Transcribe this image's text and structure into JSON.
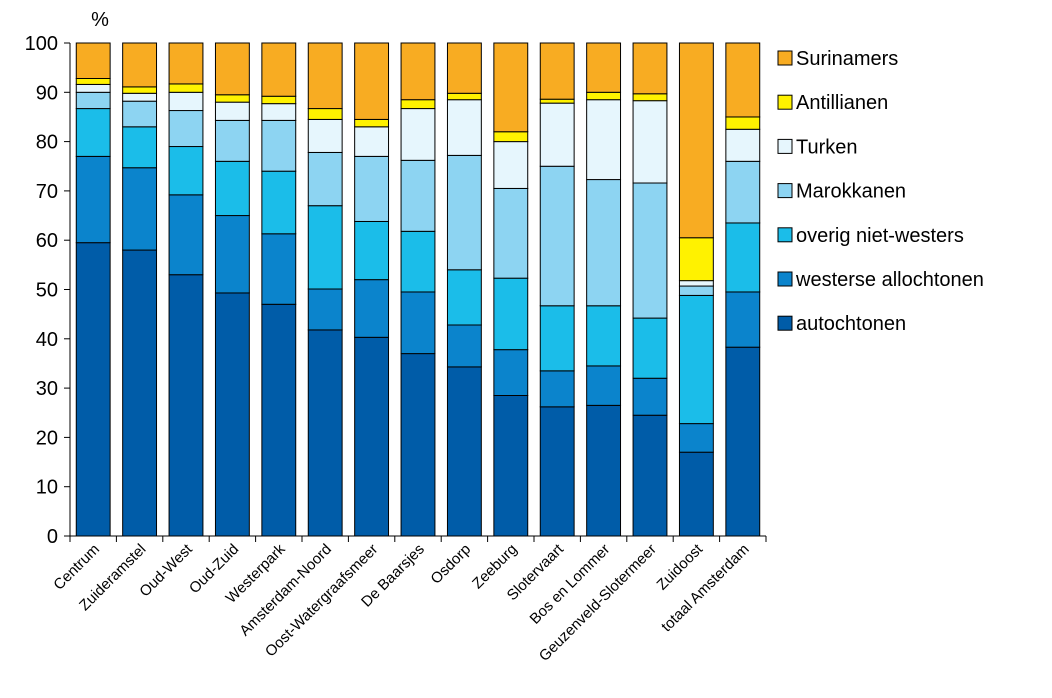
{
  "chart_data": {
    "type": "bar",
    "stacked": true,
    "ylabel": "%",
    "ylim": [
      0,
      100
    ],
    "yticks": [
      0,
      10,
      20,
      30,
      40,
      50,
      60,
      70,
      80,
      90,
      100
    ],
    "grid": false,
    "legend_position": "right",
    "categories": [
      "Centrum",
      "Zuideramstel",
      "Oud-West",
      "Oud-Zuid",
      "Westerpark",
      "Amsterdam-Noord",
      "Oost-Watergraafsmeer",
      "De Baarsjes",
      "Osdorp",
      "Zeeburg",
      "Slotervaart",
      "Bos en Lommer",
      "Geuzenveld-Slotermeer",
      "Zuidoost",
      "totaal Amsterdam"
    ],
    "series": [
      {
        "name": "autochtonen",
        "color": "#005ca8",
        "values": [
          59.5,
          58.0,
          53.0,
          49.3,
          47.0,
          41.8,
          40.3,
          37.0,
          34.3,
          28.5,
          26.2,
          26.5,
          24.5,
          17.0,
          38.3
        ]
      },
      {
        "name": "westerse allochtonen",
        "color": "#0b84cc",
        "values": [
          17.5,
          16.7,
          16.2,
          15.7,
          14.3,
          8.3,
          11.7,
          12.5,
          8.5,
          9.3,
          7.3,
          8.0,
          7.5,
          5.8,
          11.2
        ]
      },
      {
        "name": "overig niet-westers",
        "color": "#1bbde9",
        "values": [
          9.7,
          8.3,
          9.8,
          11.0,
          12.7,
          16.9,
          11.8,
          12.3,
          11.2,
          14.5,
          13.2,
          12.2,
          12.2,
          26.0,
          14.0
        ]
      },
      {
        "name": "Marokkanen",
        "color": "#8dd4f2",
        "values": [
          3.3,
          5.2,
          7.3,
          8.3,
          10.3,
          10.8,
          13.2,
          14.4,
          23.2,
          18.2,
          28.3,
          25.6,
          27.4,
          1.9,
          12.5
        ]
      },
      {
        "name": "Turken",
        "color": "#e6f6fd",
        "values": [
          1.6,
          1.6,
          3.7,
          3.7,
          3.4,
          6.7,
          6.0,
          10.5,
          11.3,
          9.5,
          12.8,
          16.2,
          16.7,
          1.1,
          6.5
        ]
      },
      {
        "name": "Antillianen",
        "color": "#fff200",
        "values": [
          1.2,
          1.3,
          1.7,
          1.5,
          1.5,
          2.2,
          1.5,
          1.8,
          1.3,
          2.0,
          0.8,
          1.5,
          1.4,
          8.7,
          2.5
        ]
      },
      {
        "name": "Surinamers",
        "color": "#f8ac22",
        "values": [
          7.2,
          8.9,
          8.3,
          10.5,
          10.8,
          13.3,
          15.5,
          11.5,
          10.2,
          18.0,
          11.4,
          10.0,
          10.3,
          39.5,
          15.0
        ]
      }
    ],
    "legend_order": [
      "Surinamers",
      "Antillianen",
      "Turken",
      "Marokkanen",
      "overig niet-westers",
      "westerse allochtonen",
      "autochtonen"
    ]
  }
}
